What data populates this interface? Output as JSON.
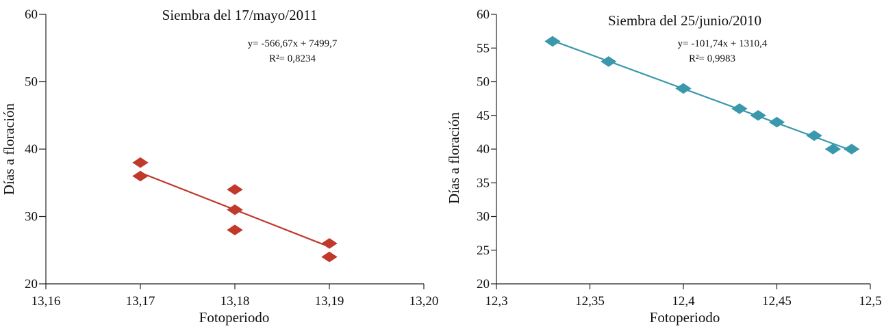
{
  "chart_data": [
    {
      "type": "scatter",
      "title": "Siembra del 17/mayo/2011",
      "xlabel": "Fotoperiodo",
      "ylabel": "Días a floración",
      "xlim": [
        13.16,
        13.2
      ],
      "ylim": [
        20,
        60
      ],
      "x_ticks": [
        13.16,
        13.17,
        13.18,
        13.19,
        13.2
      ],
      "x_tick_labels": [
        "13,16",
        "13,17",
        "13,18",
        "13,19",
        "13,20"
      ],
      "y_ticks": [
        20,
        30,
        40,
        50,
        60
      ],
      "y_tick_labels": [
        "20",
        "30",
        "40",
        "50",
        "60"
      ],
      "color": "#c0392b",
      "series": [
        {
          "name": "Días a floración",
          "points": [
            {
              "x": 13.17,
              "y": 38
            },
            {
              "x": 13.17,
              "y": 36
            },
            {
              "x": 13.18,
              "y": 34
            },
            {
              "x": 13.18,
              "y": 31
            },
            {
              "x": 13.18,
              "y": 28
            },
            {
              "x": 13.19,
              "y": 26
            },
            {
              "x": 13.19,
              "y": 24
            }
          ]
        }
      ],
      "trendline": {
        "x_start": 13.17,
        "y_start": 36.5,
        "x_end": 13.19,
        "y_end": 25.5
      },
      "equation": "y= -566,67x + 7499,7",
      "r_squared": "R²= 0,8234"
    },
    {
      "type": "scatter",
      "title": "Siembra del 25/junio/2010",
      "xlabel": "Fotoperiodo",
      "ylabel": "Días a floración",
      "xlim": [
        12.3,
        12.5
      ],
      "ylim": [
        20,
        60
      ],
      "x_ticks": [
        12.3,
        12.35,
        12.4,
        12.45,
        12.5
      ],
      "x_tick_labels": [
        "12,3",
        "12,35",
        "12,4",
        "12,45",
        "12,5"
      ],
      "y_ticks": [
        20,
        25,
        30,
        35,
        40,
        45,
        50,
        55,
        60
      ],
      "y_tick_labels": [
        "20",
        "25",
        "30",
        "35",
        "40",
        "45",
        "50",
        "55",
        "60"
      ],
      "color": "#3a98ad",
      "series": [
        {
          "name": "Días a floración",
          "points": [
            {
              "x": 12.33,
              "y": 56
            },
            {
              "x": 12.36,
              "y": 53
            },
            {
              "x": 12.4,
              "y": 49
            },
            {
              "x": 12.43,
              "y": 46
            },
            {
              "x": 12.44,
              "y": 45
            },
            {
              "x": 12.45,
              "y": 44
            },
            {
              "x": 12.47,
              "y": 42
            },
            {
              "x": 12.48,
              "y": 40
            },
            {
              "x": 12.49,
              "y": 40
            }
          ]
        }
      ],
      "trendline": {
        "x_start": 12.33,
        "y_start": 56.1,
        "x_end": 12.49,
        "y_end": 39.8
      },
      "equation": "y= -101,74x + 1310,4",
      "r_squared": "R²= 0,9983"
    }
  ]
}
